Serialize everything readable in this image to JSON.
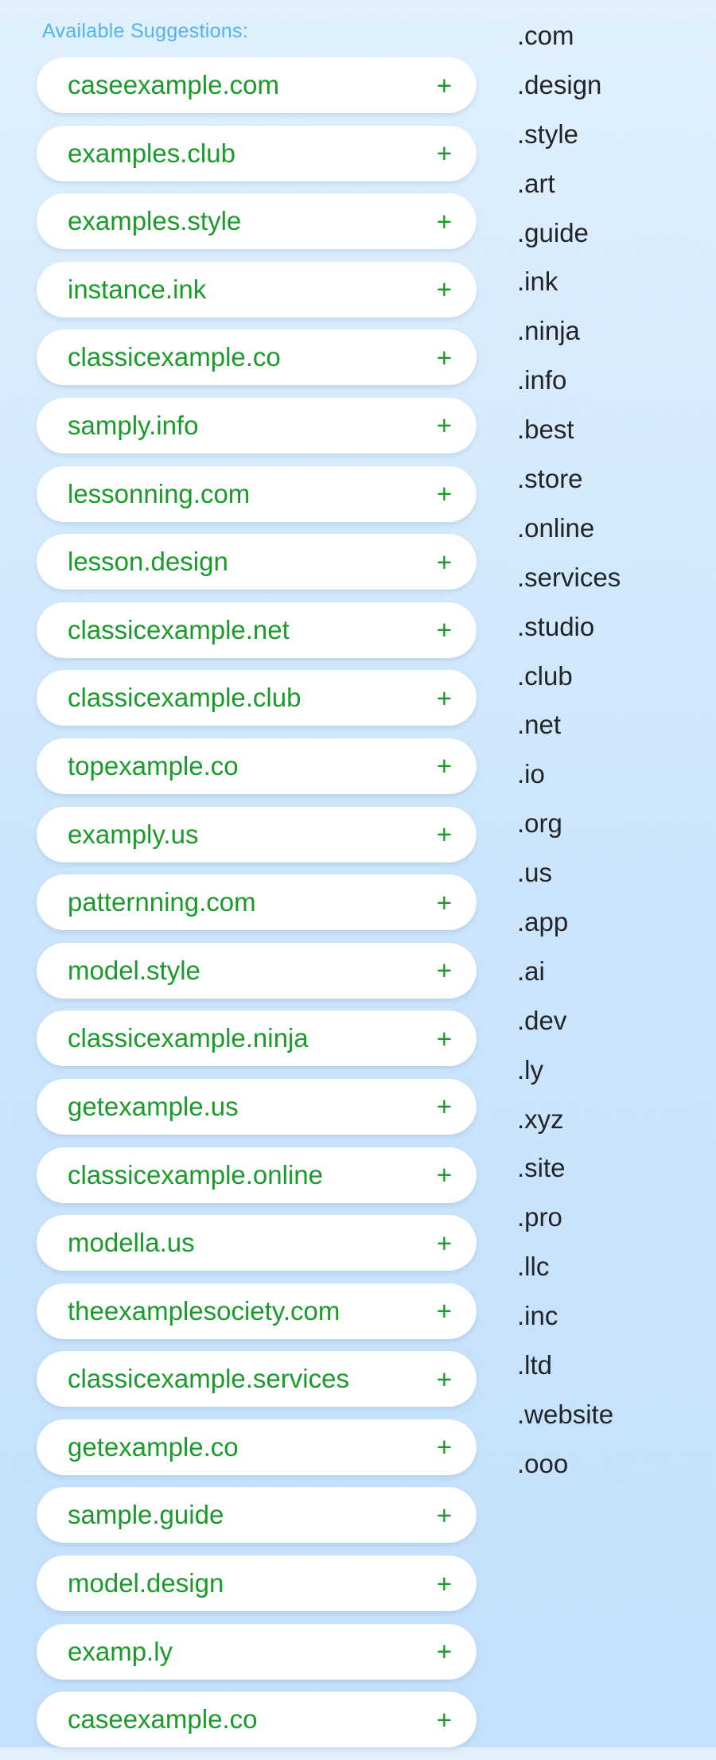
{
  "suggestions": {
    "title": "Available Suggestions:",
    "add_symbol": "+",
    "items": [
      "caseexample.com",
      "examples.club",
      "examples.style",
      "instance.ink",
      "classicexample.co",
      "samply.info",
      "lessonning.com",
      "lesson.design",
      "classicexample.net",
      "classicexample.club",
      "topexample.co",
      "examply.us",
      "patternning.com",
      "model.style",
      "classicexample.ninja",
      "getexample.us",
      "classicexample.online",
      "modella.us",
      "theexamplesociety.com",
      "classicexample.services",
      "getexample.co",
      "sample.guide",
      "model.design",
      "examp.ly",
      "caseexample.co"
    ]
  },
  "tlds": [
    ".com",
    ".design",
    ".style",
    ".art",
    ".guide",
    ".ink",
    ".ninja",
    ".info",
    ".best",
    ".store",
    ".online",
    ".services",
    ".studio",
    ".club",
    ".net",
    ".io",
    ".org",
    ".us",
    ".app",
    ".ai",
    ".dev",
    ".ly",
    ".xyz",
    ".site",
    ".pro",
    ".llc",
    ".inc",
    ".ltd",
    ".website",
    ".ooo"
  ],
  "colors": {
    "title": "#54b3e8",
    "domain_text": "#1a9a2a",
    "tld_text": "#222428",
    "pill_background": "#ffffff",
    "page_background_top": "#e0f0fd",
    "page_background_bottom": "#c4e0fc"
  }
}
